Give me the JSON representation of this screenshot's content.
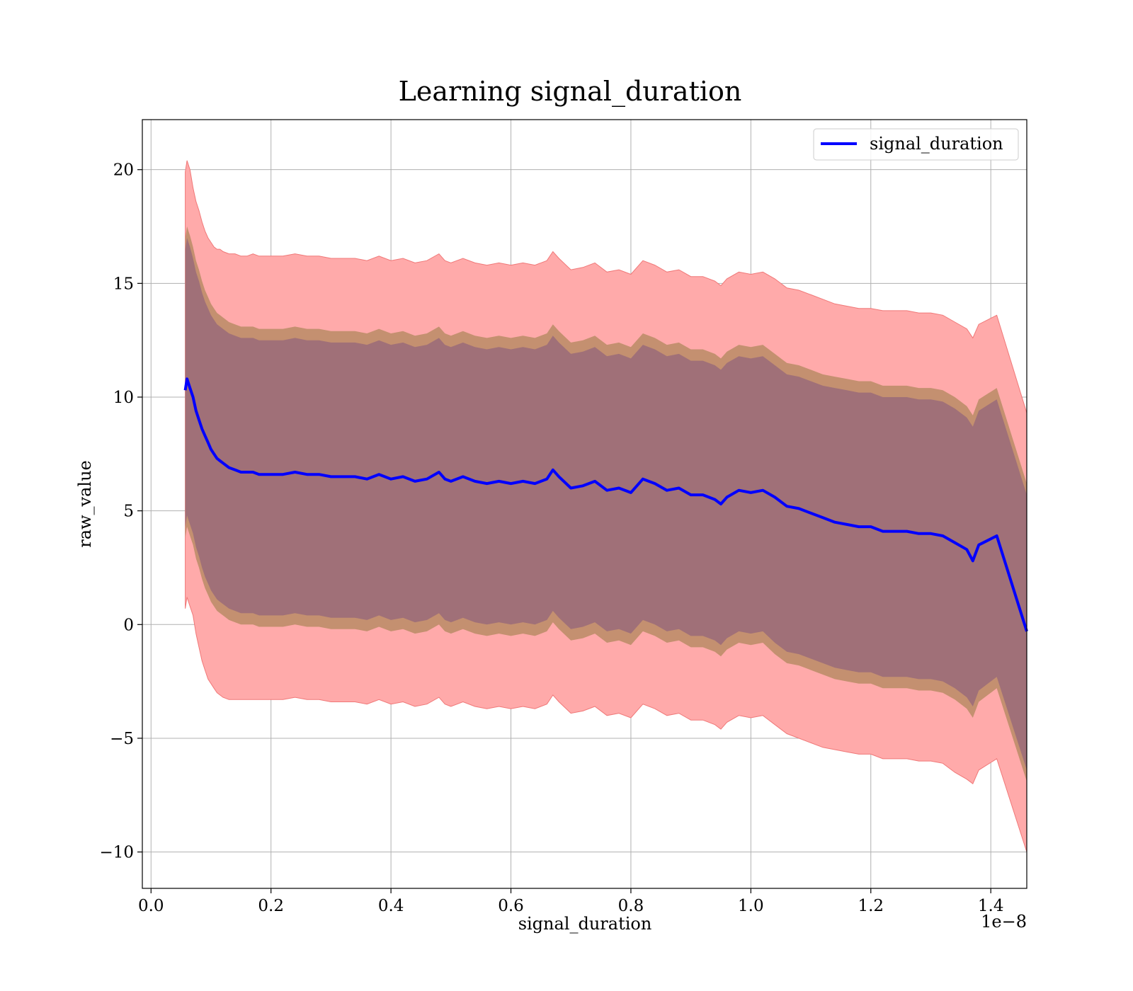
{
  "chart_data": {
    "type": "line",
    "title": "Learning signal_duration",
    "xlabel": "signal_duration",
    "ylabel": "raw_value",
    "x_offset_text": "1e−8",
    "xlim": [
      -0.0145,
      1.46
    ],
    "ylim": [
      -11.6,
      22.2
    ],
    "x_ticks": [
      0.0,
      0.2,
      0.4,
      0.6,
      0.8,
      1.0,
      1.2,
      1.4
    ],
    "x_tick_labels": [
      "0.0",
      "0.2",
      "0.4",
      "0.6",
      "0.8",
      "1.0",
      "1.2",
      "1.4"
    ],
    "y_ticks": [
      -10,
      -5,
      0,
      5,
      10,
      15,
      20
    ],
    "y_tick_labels": [
      "−10",
      "−5",
      "0",
      "5",
      "10",
      "15",
      "20"
    ],
    "grid": true,
    "legend": {
      "position": "top-right",
      "entries": [
        "signal_duration"
      ]
    },
    "colors": {
      "line": "#0000ff",
      "outer_band": "#ffaaaa",
      "outer_band_edge": "#f07878",
      "mid_band": "#c49070",
      "inner_band": "#a07078"
    },
    "series": [
      {
        "name": "signal_duration",
        "x": [
          0.057,
          0.06,
          0.065,
          0.07,
          0.075,
          0.08,
          0.085,
          0.09,
          0.095,
          0.1,
          0.105,
          0.11,
          0.115,
          0.12,
          0.13,
          0.14,
          0.15,
          0.16,
          0.17,
          0.18,
          0.2,
          0.22,
          0.24,
          0.26,
          0.28,
          0.3,
          0.32,
          0.34,
          0.36,
          0.38,
          0.4,
          0.42,
          0.44,
          0.46,
          0.48,
          0.49,
          0.5,
          0.52,
          0.54,
          0.56,
          0.58,
          0.6,
          0.62,
          0.64,
          0.66,
          0.67,
          0.68,
          0.7,
          0.72,
          0.74,
          0.76,
          0.78,
          0.8,
          0.82,
          0.84,
          0.86,
          0.88,
          0.9,
          0.92,
          0.94,
          0.95,
          0.96,
          0.98,
          1.0,
          1.02,
          1.04,
          1.06,
          1.08,
          1.1,
          1.12,
          1.14,
          1.16,
          1.18,
          1.2,
          1.22,
          1.24,
          1.26,
          1.28,
          1.3,
          1.32,
          1.34,
          1.36,
          1.37,
          1.38,
          1.41,
          1.46
        ],
        "y": [
          10.3,
          10.8,
          10.4,
          10.0,
          9.4,
          9.0,
          8.6,
          8.3,
          8.0,
          7.7,
          7.5,
          7.3,
          7.2,
          7.1,
          6.9,
          6.8,
          6.7,
          6.7,
          6.7,
          6.6,
          6.6,
          6.6,
          6.7,
          6.6,
          6.6,
          6.5,
          6.5,
          6.5,
          6.4,
          6.6,
          6.4,
          6.5,
          6.3,
          6.4,
          6.7,
          6.4,
          6.3,
          6.5,
          6.3,
          6.2,
          6.3,
          6.2,
          6.3,
          6.2,
          6.4,
          6.8,
          6.5,
          6.0,
          6.1,
          6.3,
          5.9,
          6.0,
          5.8,
          6.4,
          6.2,
          5.9,
          6.0,
          5.7,
          5.7,
          5.5,
          5.3,
          5.6,
          5.9,
          5.8,
          5.9,
          5.6,
          5.2,
          5.1,
          4.9,
          4.7,
          4.5,
          4.4,
          4.3,
          4.3,
          4.1,
          4.1,
          4.1,
          4.0,
          4.0,
          3.9,
          3.6,
          3.3,
          2.8,
          3.5,
          3.9,
          -0.3
        ]
      }
    ],
    "bands": [
      {
        "role": "outer",
        "upper": [
          19.9,
          20.4,
          20.0,
          19.2,
          18.6,
          18.2,
          17.7,
          17.3,
          17.0,
          16.8,
          16.6,
          16.5,
          16.5,
          16.4,
          16.3,
          16.3,
          16.2,
          16.2,
          16.3,
          16.2,
          16.2,
          16.2,
          16.3,
          16.2,
          16.2,
          16.1,
          16.1,
          16.1,
          16.0,
          16.2,
          16.0,
          16.1,
          15.9,
          16.0,
          16.3,
          16.0,
          15.9,
          16.1,
          15.9,
          15.8,
          15.9,
          15.8,
          15.9,
          15.8,
          16.0,
          16.4,
          16.1,
          15.6,
          15.7,
          15.9,
          15.5,
          15.6,
          15.4,
          16.0,
          15.8,
          15.5,
          15.6,
          15.3,
          15.3,
          15.1,
          14.9,
          15.2,
          15.5,
          15.4,
          15.5,
          15.2,
          14.8,
          14.7,
          14.5,
          14.3,
          14.1,
          14.0,
          13.9,
          13.9,
          13.8,
          13.8,
          13.8,
          13.7,
          13.7,
          13.6,
          13.3,
          13.0,
          12.6,
          13.2,
          13.6,
          9.3
        ],
        "lower": [
          0.7,
          1.2,
          0.8,
          0.4,
          -0.4,
          -1.0,
          -1.6,
          -2.0,
          -2.4,
          -2.6,
          -2.8,
          -3.0,
          -3.1,
          -3.2,
          -3.3,
          -3.3,
          -3.3,
          -3.3,
          -3.3,
          -3.3,
          -3.3,
          -3.3,
          -3.2,
          -3.3,
          -3.3,
          -3.4,
          -3.4,
          -3.4,
          -3.5,
          -3.3,
          -3.5,
          -3.4,
          -3.6,
          -3.5,
          -3.2,
          -3.5,
          -3.6,
          -3.4,
          -3.6,
          -3.7,
          -3.6,
          -3.7,
          -3.6,
          -3.7,
          -3.5,
          -3.1,
          -3.4,
          -3.9,
          -3.8,
          -3.6,
          -4.0,
          -3.9,
          -4.1,
          -3.5,
          -3.7,
          -4.0,
          -3.9,
          -4.2,
          -4.2,
          -4.4,
          -4.6,
          -4.3,
          -4.0,
          -4.1,
          -4.0,
          -4.4,
          -4.8,
          -5.0,
          -5.2,
          -5.4,
          -5.5,
          -5.6,
          -5.7,
          -5.7,
          -5.9,
          -5.9,
          -5.9,
          -6.0,
          -6.0,
          -6.1,
          -6.5,
          -6.8,
          -7.0,
          -6.4,
          -5.9,
          -10.0
        ]
      },
      {
        "role": "mid",
        "upper": [
          17.0,
          17.5,
          17.1,
          16.6,
          16.0,
          15.6,
          15.1,
          14.7,
          14.4,
          14.1,
          13.9,
          13.7,
          13.6,
          13.5,
          13.3,
          13.2,
          13.1,
          13.1,
          13.1,
          13.0,
          13.0,
          13.0,
          13.1,
          13.0,
          13.0,
          12.9,
          12.9,
          12.9,
          12.8,
          13.0,
          12.8,
          12.9,
          12.7,
          12.8,
          13.1,
          12.8,
          12.7,
          12.9,
          12.7,
          12.6,
          12.7,
          12.6,
          12.7,
          12.6,
          12.8,
          13.2,
          12.9,
          12.4,
          12.5,
          12.7,
          12.3,
          12.4,
          12.2,
          12.8,
          12.6,
          12.3,
          12.4,
          12.1,
          12.1,
          11.9,
          11.7,
          12.0,
          12.3,
          12.2,
          12.3,
          11.9,
          11.5,
          11.4,
          11.2,
          11.0,
          10.9,
          10.8,
          10.7,
          10.7,
          10.5,
          10.5,
          10.5,
          10.4,
          10.4,
          10.3,
          10.0,
          9.6,
          9.2,
          9.9,
          10.4,
          6.2
        ],
        "lower": [
          3.8,
          4.3,
          3.9,
          3.5,
          2.9,
          2.5,
          2.0,
          1.6,
          1.3,
          1.0,
          0.8,
          0.6,
          0.5,
          0.4,
          0.2,
          0.1,
          0.0,
          0.0,
          0.0,
          -0.1,
          -0.1,
          -0.1,
          0.0,
          -0.1,
          -0.1,
          -0.2,
          -0.2,
          -0.2,
          -0.3,
          -0.1,
          -0.3,
          -0.2,
          -0.4,
          -0.3,
          0.0,
          -0.3,
          -0.4,
          -0.2,
          -0.4,
          -0.5,
          -0.4,
          -0.5,
          -0.4,
          -0.5,
          -0.3,
          0.1,
          -0.2,
          -0.7,
          -0.6,
          -0.4,
          -0.8,
          -0.7,
          -0.9,
          -0.3,
          -0.5,
          -0.8,
          -0.7,
          -1.0,
          -1.0,
          -1.2,
          -1.4,
          -1.1,
          -0.8,
          -0.9,
          -0.8,
          -1.3,
          -1.7,
          -1.8,
          -2.0,
          -2.2,
          -2.4,
          -2.5,
          -2.6,
          -2.6,
          -2.8,
          -2.8,
          -2.8,
          -2.9,
          -2.9,
          -3.0,
          -3.3,
          -3.7,
          -4.1,
          -3.4,
          -2.8,
          -6.9
        ]
      },
      {
        "role": "inner",
        "upper": [
          16.5,
          17.0,
          16.6,
          16.1,
          15.5,
          15.1,
          14.6,
          14.2,
          13.9,
          13.6,
          13.4,
          13.2,
          13.1,
          13.0,
          12.8,
          12.7,
          12.6,
          12.6,
          12.6,
          12.5,
          12.5,
          12.5,
          12.6,
          12.5,
          12.5,
          12.4,
          12.4,
          12.4,
          12.3,
          12.5,
          12.3,
          12.4,
          12.2,
          12.3,
          12.6,
          12.3,
          12.2,
          12.4,
          12.2,
          12.1,
          12.2,
          12.1,
          12.2,
          12.1,
          12.3,
          12.7,
          12.4,
          11.9,
          12.0,
          12.2,
          11.8,
          11.9,
          11.7,
          12.3,
          12.1,
          11.8,
          11.9,
          11.6,
          11.6,
          11.4,
          11.2,
          11.5,
          11.8,
          11.7,
          11.8,
          11.4,
          11.0,
          10.9,
          10.7,
          10.5,
          10.4,
          10.3,
          10.2,
          10.2,
          10.0,
          10.0,
          10.0,
          9.9,
          9.9,
          9.8,
          9.5,
          9.1,
          8.7,
          9.4,
          9.9,
          5.7
        ],
        "lower": [
          4.3,
          4.8,
          4.4,
          4.0,
          3.4,
          3.0,
          2.5,
          2.1,
          1.8,
          1.5,
          1.3,
          1.1,
          1.0,
          0.9,
          0.7,
          0.6,
          0.5,
          0.5,
          0.5,
          0.4,
          0.4,
          0.4,
          0.5,
          0.4,
          0.4,
          0.3,
          0.3,
          0.3,
          0.2,
          0.4,
          0.2,
          0.3,
          0.1,
          0.2,
          0.5,
          0.2,
          0.1,
          0.3,
          0.1,
          0.0,
          0.1,
          0.0,
          0.1,
          0.0,
          0.2,
          0.6,
          0.3,
          -0.2,
          -0.1,
          0.1,
          -0.3,
          -0.2,
          -0.4,
          0.2,
          0.0,
          -0.3,
          -0.2,
          -0.5,
          -0.5,
          -0.7,
          -0.9,
          -0.6,
          -0.3,
          -0.4,
          -0.3,
          -0.8,
          -1.2,
          -1.3,
          -1.5,
          -1.7,
          -1.9,
          -2.0,
          -2.1,
          -2.1,
          -2.3,
          -2.3,
          -2.3,
          -2.4,
          -2.4,
          -2.5,
          -2.8,
          -3.2,
          -3.6,
          -2.9,
          -2.3,
          -6.4
        ]
      }
    ]
  }
}
